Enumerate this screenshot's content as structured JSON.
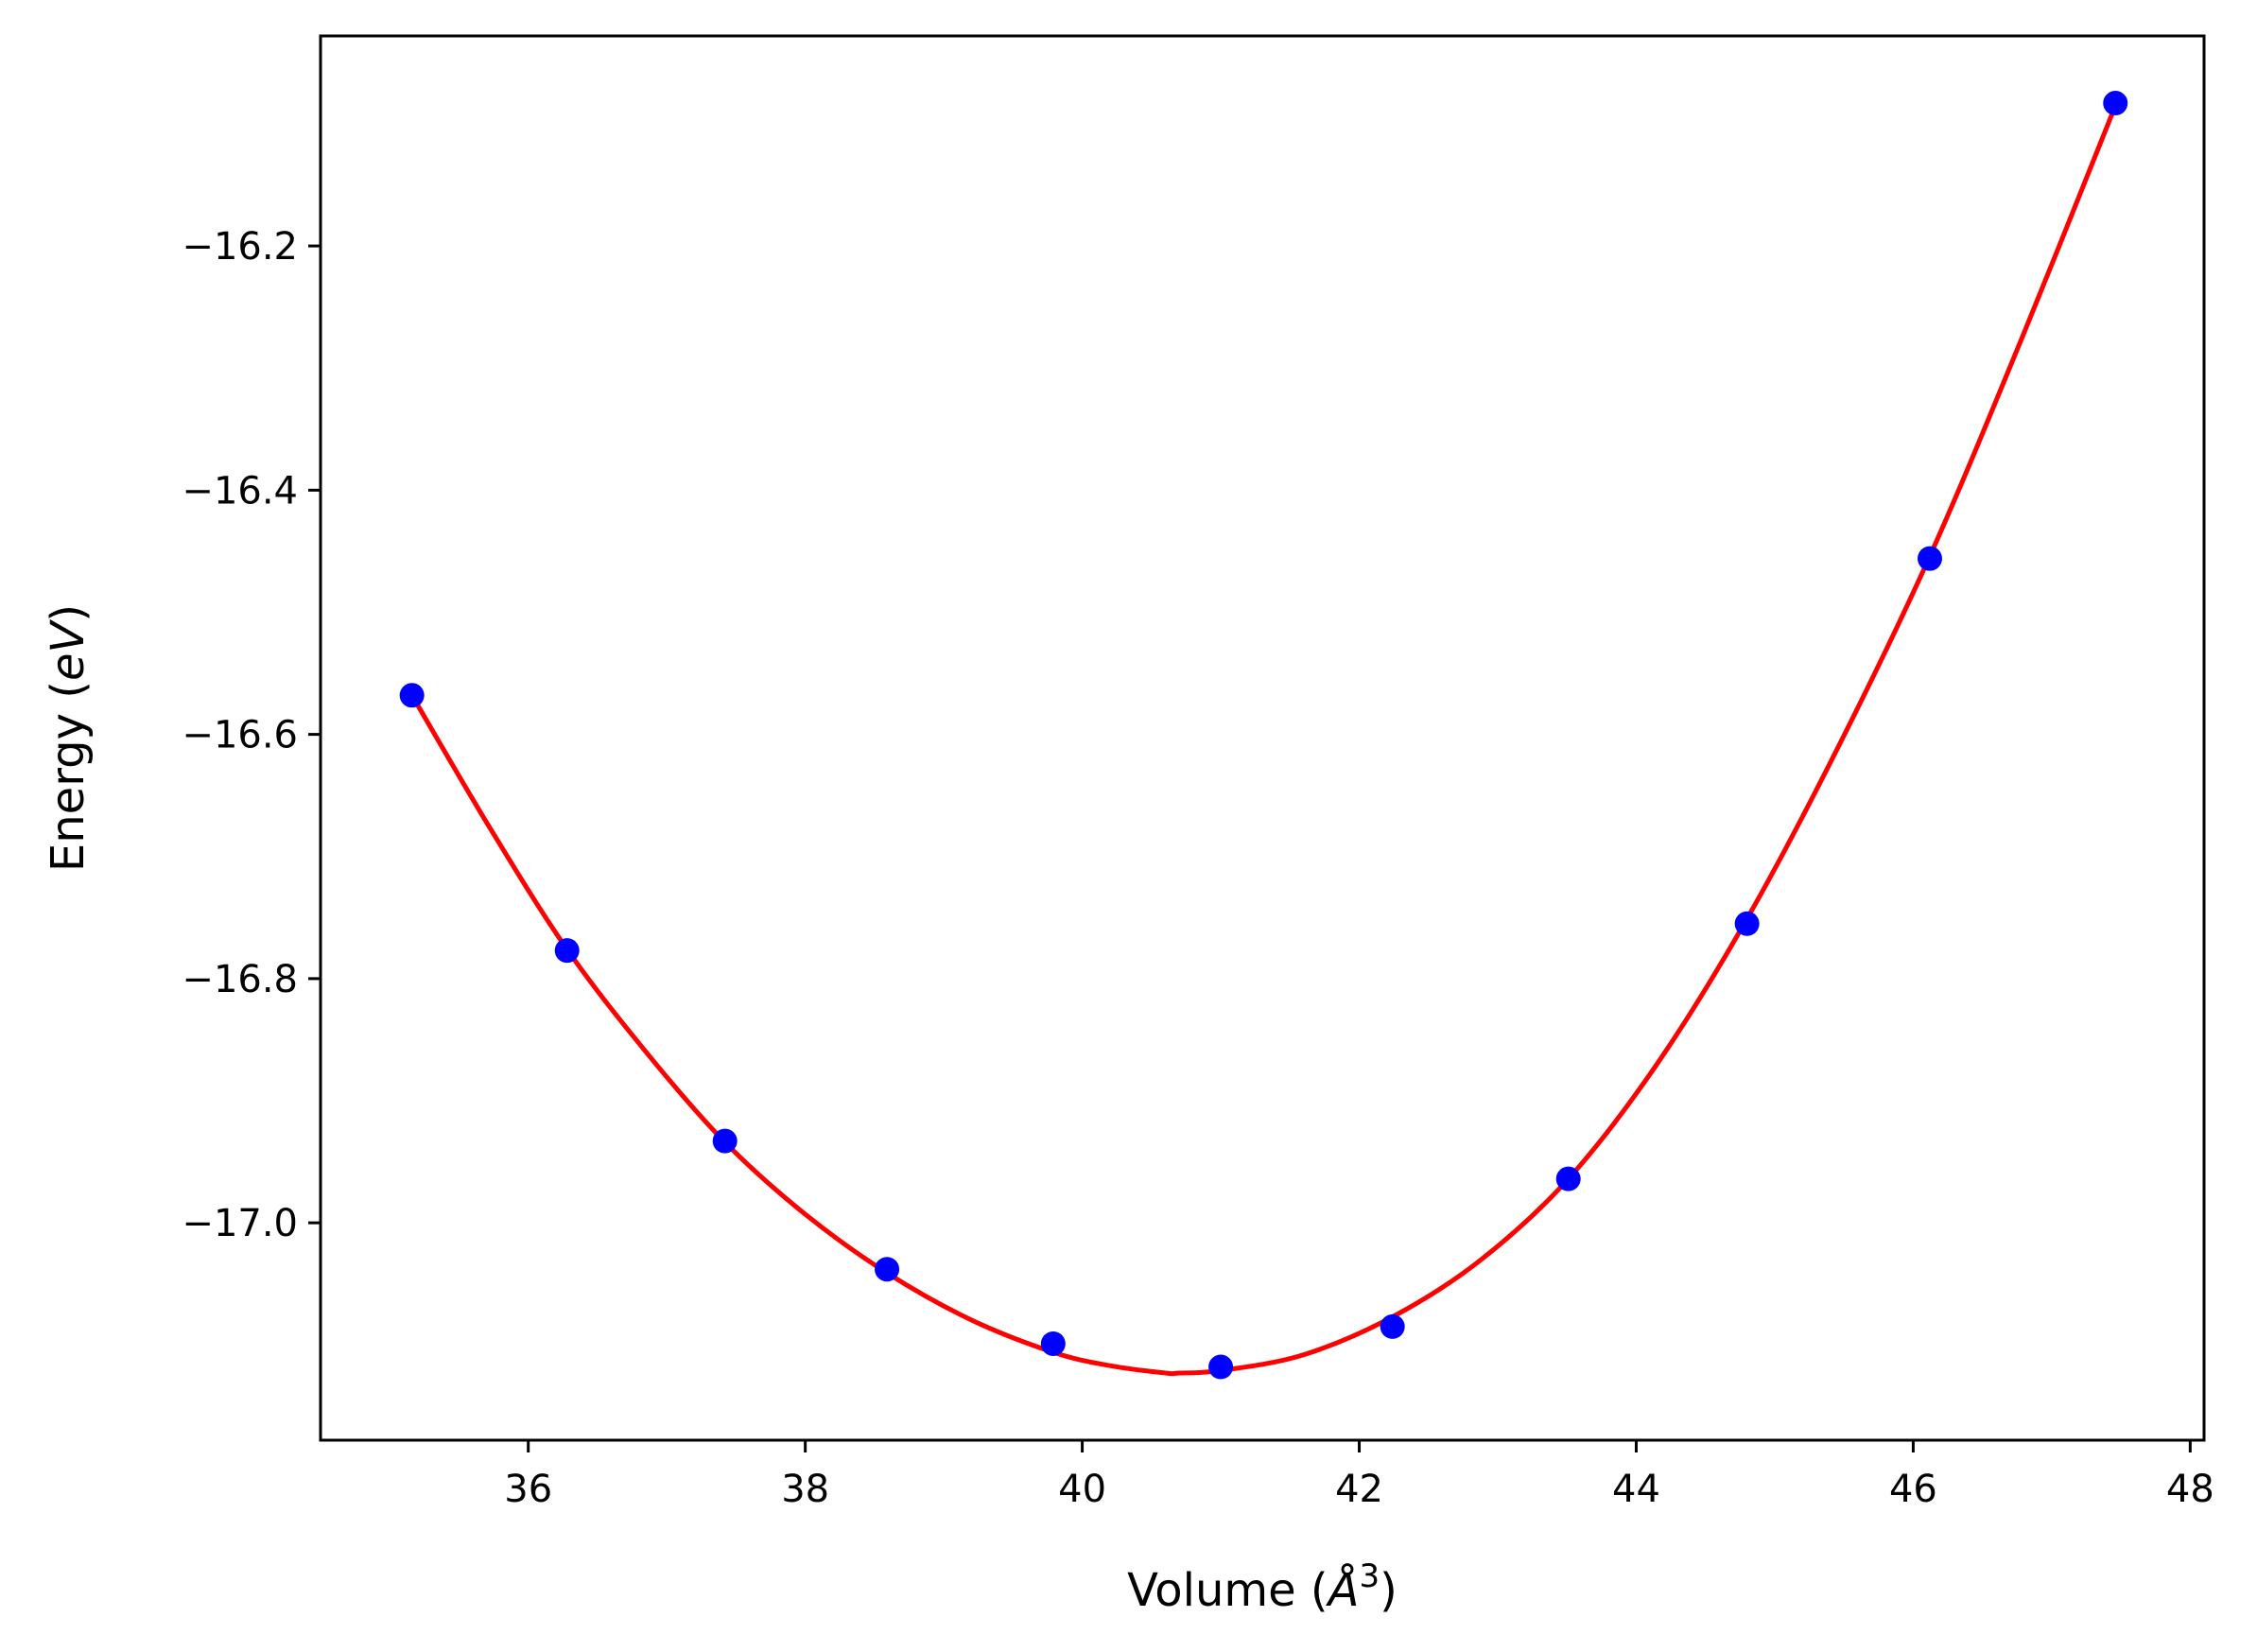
{
  "chart_data": {
    "type": "scatter",
    "xlabel_prefix": "Volume (",
    "xlabel_unit": "Å",
    "xlabel_power": "3",
    "xlabel_suffix": ")",
    "ylabel_prefix": "Energy (",
    "ylabel_unit": "eV",
    "ylabel_suffix": ")",
    "xlim": [
      34.5,
      48.1
    ],
    "ylim": [
      -17.178,
      -16.028
    ],
    "xticks": [
      36,
      38,
      40,
      42,
      44,
      46,
      48
    ],
    "xtick_labels": [
      "36",
      "38",
      "40",
      "42",
      "44",
      "46",
      "48"
    ],
    "yticks": [
      -16.2,
      -16.4,
      -16.6,
      -16.8,
      -17.0
    ],
    "ytick_labels": [
      "−16.2",
      "−16.4",
      "−16.6",
      "−16.8",
      "−17.0"
    ],
    "grid": false,
    "series": [
      {
        "kind": "points",
        "color": "#0000ff",
        "x": [
          35.16,
          36.28,
          37.42,
          38.59,
          39.79,
          41.0,
          42.24,
          43.51,
          44.8,
          46.12,
          47.46
        ],
        "y": [
          -16.568,
          -16.777,
          -16.933,
          -17.038,
          -17.099,
          -17.118,
          -17.085,
          -16.964,
          -16.755,
          -16.456,
          -16.083
        ]
      },
      {
        "kind": "fit",
        "color": "#ff0000",
        "x": [
          35.16,
          35.72,
          36.28,
          36.85,
          37.42,
          38.0,
          38.59,
          39.19,
          39.79,
          40.2,
          40.6,
          40.7,
          41.0,
          41.6,
          42.24,
          42.87,
          43.51,
          44.15,
          44.8,
          45.46,
          46.12,
          46.79,
          47.46
        ],
        "y": [
          -16.568,
          -16.676,
          -16.776,
          -16.86,
          -16.934,
          -16.993,
          -17.041,
          -17.079,
          -17.106,
          -17.117,
          -17.123,
          -17.123,
          -17.121,
          -17.108,
          -17.077,
          -17.031,
          -16.964,
          -16.87,
          -16.751,
          -16.61,
          -16.454,
          -16.274,
          -16.085
        ]
      }
    ]
  }
}
